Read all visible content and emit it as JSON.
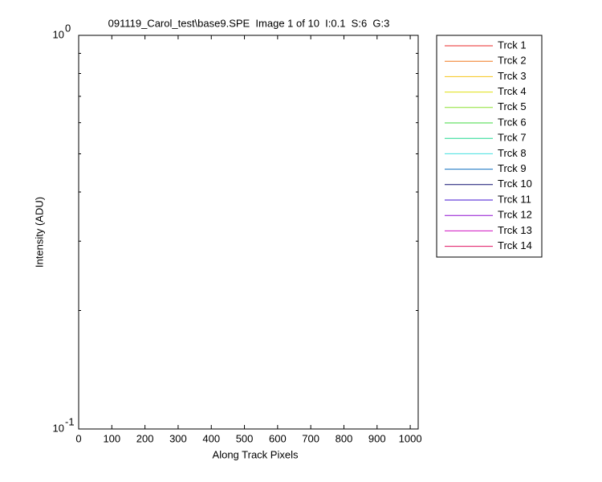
{
  "chart_data": {
    "type": "line",
    "title": "091119_Carol_test\\base9.SPE  Image 1 of 10  I:0.1  S:6  G:3",
    "x_label": "Along Track Pixels",
    "y_label": "Intensity (ADU)",
    "xlim": [
      0,
      1024
    ],
    "xticks": [
      0,
      100,
      200,
      300,
      400,
      500,
      600,
      700,
      800,
      900,
      1000
    ],
    "ylim": [
      0.1,
      1
    ],
    "y_scale": "log",
    "yticks": [
      {
        "value": 0.1,
        "label": "10",
        "exponent": "-1"
      },
      {
        "value": 1,
        "label": "10",
        "exponent": "0"
      }
    ],
    "yminorticks": [
      0.2,
      0.3,
      0.4,
      0.5,
      0.6,
      0.7,
      0.8,
      0.9
    ],
    "grid": false,
    "legend": "outside-right",
    "series": [
      {
        "name": "Trck 1",
        "color": "#e8282a",
        "values": []
      },
      {
        "name": "Trck 2",
        "color": "#f07a20",
        "values": []
      },
      {
        "name": "Trck 3",
        "color": "#f5c518",
        "values": []
      },
      {
        "name": "Trck 4",
        "color": "#e0e010",
        "values": []
      },
      {
        "name": "Trck 5",
        "color": "#8ce030",
        "values": []
      },
      {
        "name": "Trck 6",
        "color": "#40d840",
        "values": []
      },
      {
        "name": "Trck 7",
        "color": "#20d890",
        "values": []
      },
      {
        "name": "Trck 8",
        "color": "#40e0e0",
        "values": []
      },
      {
        "name": "Trck 9",
        "color": "#1070c0",
        "values": []
      },
      {
        "name": "Trck 10",
        "color": "#101070",
        "values": []
      },
      {
        "name": "Trck 11",
        "color": "#4010d0",
        "values": []
      },
      {
        "name": "Trck 12",
        "color": "#9010d0",
        "values": []
      },
      {
        "name": "Trck 13",
        "color": "#d010c0",
        "values": []
      },
      {
        "name": "Trck 14",
        "color": "#e01060",
        "values": []
      }
    ]
  }
}
